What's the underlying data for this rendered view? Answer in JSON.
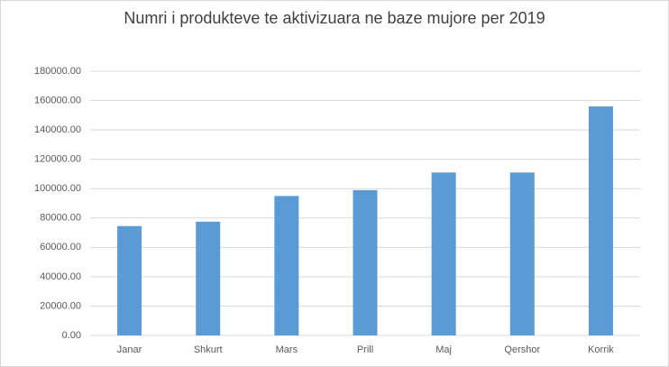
{
  "chart_data": {
    "type": "bar",
    "title": "Numri i produkteve te aktivizuara ne baze mujore per 2019",
    "categories": [
      "Janar",
      "Shkurt",
      "Mars",
      "Prill",
      "Maj",
      "Qershor",
      "Korrik"
    ],
    "values": [
      74500,
      77500,
      95000,
      99000,
      111000,
      111000,
      156000
    ],
    "color": "#5b9bd5",
    "ylim": [
      0,
      180000
    ],
    "yticks": [
      {
        "value": 0,
        "label": "0.00"
      },
      {
        "value": 20000,
        "label": "20000.00"
      },
      {
        "value": 40000,
        "label": "40000.00"
      },
      {
        "value": 60000,
        "label": "60000.00"
      },
      {
        "value": 80000,
        "label": "80000.00"
      },
      {
        "value": 100000,
        "label": "100000.00"
      },
      {
        "value": 120000,
        "label": "120000.00"
      },
      {
        "value": 140000,
        "label": "140000.00"
      },
      {
        "value": 160000,
        "label": "160000.00"
      },
      {
        "value": 180000,
        "label": "180000.00"
      }
    ],
    "grid": true
  }
}
